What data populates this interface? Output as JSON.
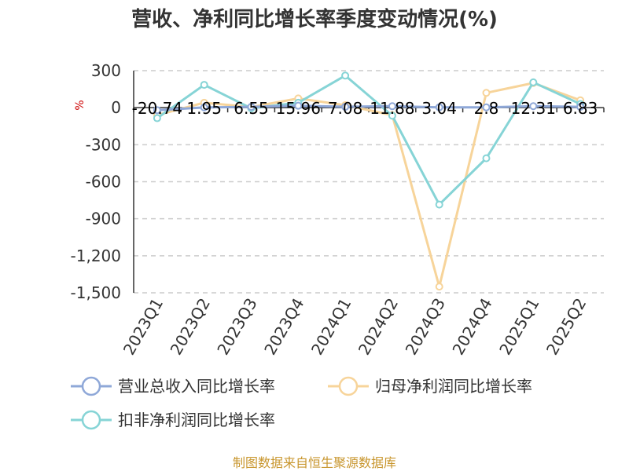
{
  "chart_data": {
    "type": "line",
    "title": "营收、净利同比增长率季度变动情况(%)",
    "ylabel": "%",
    "categories": [
      "2023Q1",
      "2023Q2",
      "2023Q3",
      "2023Q4",
      "2024Q1",
      "2024Q2",
      "2024Q3",
      "2024Q4",
      "2025Q1",
      "2025Q2"
    ],
    "ylim": [
      -1500,
      300
    ],
    "yticks": [
      300,
      0,
      -300,
      -600,
      -900,
      -1200,
      -1500
    ],
    "ytick_labels": [
      "300",
      "0",
      "-300",
      "-600",
      "-900",
      "-1,200",
      "-1,500"
    ],
    "grid": true,
    "legend_position": "bottom",
    "series": [
      {
        "name": "营业总收入同比增长率",
        "color": "#8fa8d8",
        "values": [
          -20.74,
          1.95,
          6.55,
          15.96,
          7.08,
          11.88,
          3.04,
          2.8,
          12.31,
          6.83
        ],
        "data_labels": [
          "-20.74",
          "1.95",
          "6.55",
          "15.96",
          "7.08",
          "11.88",
          "3.04",
          "2.8",
          "12.31",
          "6.83"
        ]
      },
      {
        "name": "归母净利润同比增长率",
        "color": "#f7d49a",
        "values": [
          -60,
          40,
          5,
          75,
          20,
          -60,
          -1450,
          120,
          200,
          60
        ]
      },
      {
        "name": "扣非净利润同比增长率",
        "color": "#86d4d6",
        "values": [
          -85,
          185,
          -5,
          40,
          260,
          -65,
          -785,
          -410,
          205,
          30
        ]
      }
    ],
    "source": "制图数据来自恒生聚源数据库"
  }
}
